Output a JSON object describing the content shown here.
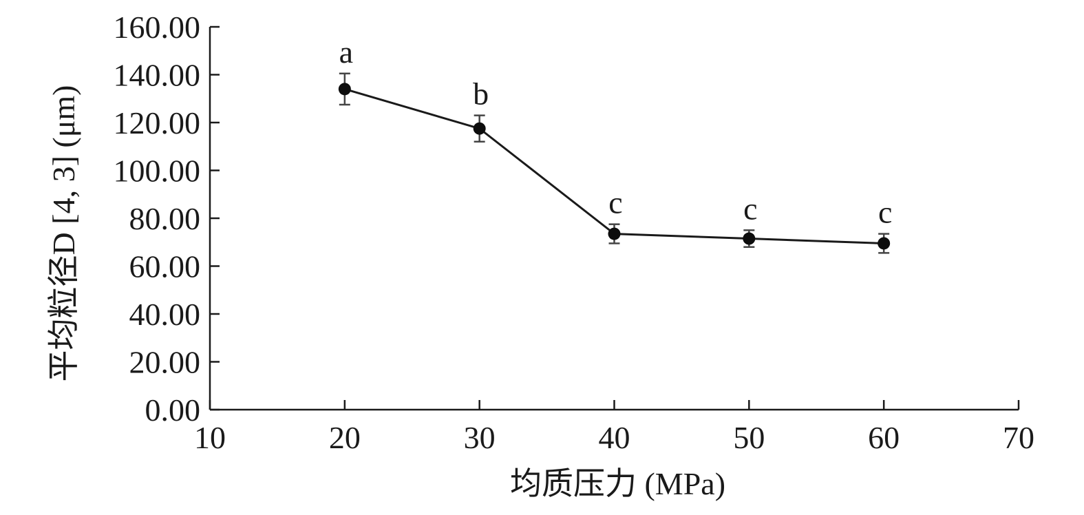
{
  "chart_data": {
    "type": "line",
    "title": "",
    "xlabel": "均质压力 (MPa)",
    "ylabel": "平均粒径D [4, 3] (μm)",
    "xlim": [
      10,
      70
    ],
    "ylim": [
      0,
      160
    ],
    "x_ticks": [
      "10",
      "20",
      "30",
      "40",
      "50",
      "60",
      "70"
    ],
    "y_ticks": [
      "0.00",
      "20.00",
      "40.00",
      "60.00",
      "80.00",
      "100.00",
      "120.00",
      "140.00",
      "160.00"
    ],
    "grid": false,
    "series": [
      {
        "x": [
          20,
          30,
          40,
          50,
          60
        ],
        "values": [
          134.0,
          117.5,
          73.5,
          71.5,
          69.5
        ],
        "error": [
          6.5,
          5.5,
          4.0,
          3.5,
          4.0
        ],
        "labels": [
          "a",
          "b",
          "c",
          "c",
          "c"
        ]
      }
    ]
  }
}
